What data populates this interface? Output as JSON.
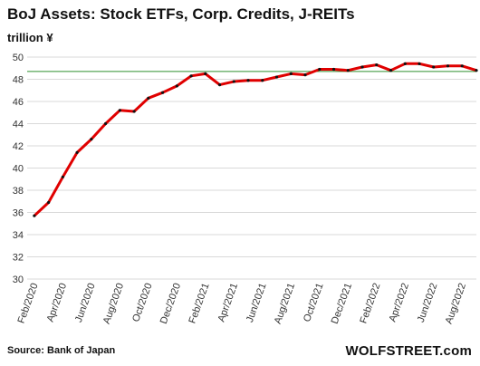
{
  "chart_data": {
    "type": "line",
    "title": "BoJ Assets: Stock ETFs, Corp. Credits, J-REITs",
    "unit_label": "trillion ¥",
    "x": [
      "Feb/2020",
      "Mar/2020",
      "Apr/2020",
      "May/2020",
      "Jun/2020",
      "Jul/2020",
      "Aug/2020",
      "Sep/2020",
      "Oct/2020",
      "Nov/2020",
      "Dec/2020",
      "Jan/2021",
      "Feb/2021",
      "Mar/2021",
      "Apr/2021",
      "May/2021",
      "Jun/2021",
      "Jul/2021",
      "Aug/2021",
      "Sep/2021",
      "Oct/2021",
      "Nov/2021",
      "Dec/2021",
      "Jan/2022",
      "Feb/2022",
      "Mar/2022",
      "Apr/2022",
      "May/2022",
      "Jun/2022",
      "Jul/2022",
      "Aug/2022",
      "Sep/2022"
    ],
    "x_tick_labels": [
      "Feb/2020",
      "Apr/2020",
      "Jun/2020",
      "Aug/2020",
      "Oct/2020",
      "Dec/2020",
      "Feb/2021",
      "Apr/2021",
      "Jun/2021",
      "Aug/2021",
      "Oct/2021",
      "Dec/2021",
      "Feb/2022",
      "Apr/2022",
      "Jun/2022",
      "Aug/2022"
    ],
    "series": [
      {
        "values": [
          35.7,
          36.9,
          39.2,
          41.4,
          42.6,
          44.0,
          45.2,
          45.1,
          46.3,
          46.8,
          47.4,
          48.3,
          48.5,
          47.5,
          47.8,
          47.9,
          47.9,
          48.2,
          48.5,
          48.4,
          48.9,
          48.9,
          48.8,
          49.1,
          49.3,
          48.8,
          49.4,
          49.4,
          49.1,
          49.2,
          49.2,
          48.8
        ],
        "color": "#e00000",
        "marker_color": "#111111"
      }
    ],
    "reference_line": {
      "value": 48.7,
      "color": "#2f8f2f"
    },
    "ylim": [
      30,
      50
    ],
    "y_ticks": [
      30,
      32,
      34,
      36,
      38,
      40,
      42,
      44,
      46,
      48,
      50
    ],
    "grid": "horizontal",
    "grid_color": "#d9d9d9",
    "xlabel": "",
    "ylabel": ""
  },
  "footer": {
    "source": "Source: Bank of Japan",
    "brand": "WOLFSTREET.com"
  }
}
